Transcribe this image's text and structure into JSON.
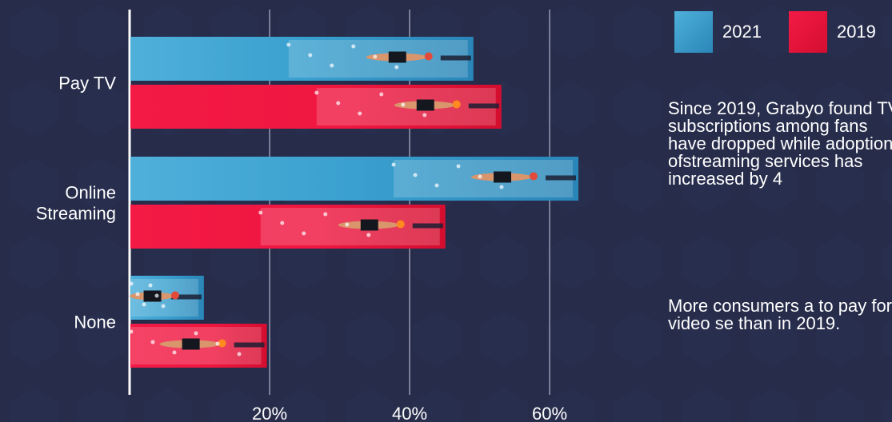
{
  "chart_data": {
    "type": "bar",
    "orientation": "horizontal",
    "categories": [
      "Pay TV",
      "Online\nStreaming",
      "None"
    ],
    "series": [
      {
        "name": "2021",
        "values": [
          49,
          64,
          10.5
        ]
      },
      {
        "name": "2019",
        "values": [
          53,
          45,
          19.5
        ]
      }
    ],
    "xlim": [
      0,
      64
    ],
    "xticks": [
      20,
      40,
      60
    ],
    "xtick_labels": [
      "20%",
      "40%",
      "60%"
    ],
    "grid": true,
    "legend_position": "top-right"
  },
  "colors": {
    "background": "#262c4a",
    "series_2021": "#3aa0cf",
    "series_2021_light": "#5ab4dc",
    "series_2019": "#f0163d",
    "series_2019_dark": "#d80f33",
    "gridline": "#7a7f96",
    "axis": "#ffffff"
  },
  "icons": {
    "bar_overlay": "swimmer-splash-icon"
  },
  "legend": [
    {
      "label": "2021",
      "color": "#3aa0cf"
    },
    {
      "label": "2019",
      "color": "#f0163d"
    }
  ],
  "notes": [
    "Since 2019, Grabyo found TV subscriptions among fans have dropped while adoption ofstreaming services has increased by 4",
    "More consumers a to pay for video se than in 2019."
  ]
}
